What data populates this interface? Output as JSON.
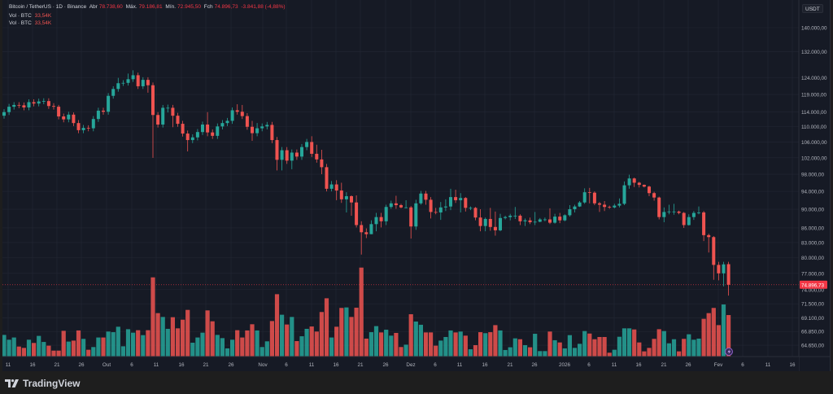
{
  "legend": {
    "symbol": "Bitcoin / TetherUS · 1D · Binance",
    "open_label": "Abr",
    "open": "78.738,60",
    "high_label": "Máx.",
    "high": "79.186,81",
    "low_label": "Mín.",
    "low": "72.945,50",
    "close_label": "Fch",
    "close": "74.896,73",
    "change": "-3.841,88 (-4,88%)",
    "volume_rows": [
      {
        "label": "Vol · BTC",
        "value": "33,54K"
      },
      {
        "label": "Vol · BTC",
        "value": "33,54K"
      }
    ]
  },
  "currency_button": "USDT",
  "current_price_label": "74.896,73",
  "footer": {
    "brand": "TradingView"
  },
  "colors": {
    "up": "#26a69a",
    "down": "#ef5350",
    "background": "#161a25",
    "grid": "#232734",
    "price_tag": "#f23645"
  },
  "chart_data": {
    "type": "candlestick",
    "title": "Bitcoin / TetherUS · 1D · Binance",
    "y_scale": "log",
    "y_ticks": [
      "140.000,00",
      "132.000,00",
      "124.000,00",
      "119.000,00",
      "114.000,00",
      "110.000,00",
      "106.000,00",
      "102.000,00",
      "98.000,00",
      "94.000,00",
      "90.000,00",
      "86.000,00",
      "83.000,00",
      "80.000,00",
      "77.000,00",
      "74.000,00",
      "71.500,00",
      "69.100,00",
      "66.850,00",
      "64.650,00"
    ],
    "y_tick_values": [
      140000,
      132000,
      124000,
      119000,
      114000,
      110000,
      106000,
      102000,
      98000,
      94000,
      90000,
      86000,
      83000,
      80000,
      77000,
      74000,
      71500,
      69100,
      66850,
      64650
    ],
    "x_ticks": [
      "11",
      "16",
      "21",
      "26",
      "Out",
      "6",
      "11",
      "16",
      "21",
      "26",
      "Nov",
      "6",
      "11",
      "16",
      "21",
      "26",
      "Dez",
      "6",
      "11",
      "16",
      "21",
      "26",
      "2026",
      "6",
      "11",
      "16",
      "21",
      "26",
      "Fev",
      "6",
      "11",
      "16"
    ],
    "grid": true,
    "ohlc_columns": [
      "open",
      "high",
      "low",
      "close"
    ],
    "candles": [
      [
        113000,
        114800,
        112200,
        114000
      ],
      [
        114000,
        116300,
        113200,
        115500
      ],
      [
        115500,
        116800,
        114700,
        116000
      ],
      [
        116000,
        116800,
        115100,
        115900
      ],
      [
        115900,
        116700,
        114500,
        115300
      ],
      [
        115300,
        117600,
        114500,
        116800
      ],
      [
        116800,
        117600,
        115600,
        116400
      ],
      [
        116400,
        117800,
        115600,
        117000
      ],
      [
        117000,
        117900,
        116200,
        117100
      ],
      [
        117100,
        117900,
        114900,
        115700
      ],
      [
        115700,
        116500,
        114700,
        115500
      ],
      [
        115500,
        116000,
        112000,
        112800
      ],
      [
        112800,
        113600,
        111200,
        112000
      ],
      [
        112000,
        114100,
        111200,
        113300
      ],
      [
        113300,
        113900,
        110200,
        111000
      ],
      [
        111000,
        111800,
        108300,
        109100
      ],
      [
        109100,
        110500,
        108300,
        109700
      ],
      [
        109700,
        110400,
        108800,
        109600
      ],
      [
        109600,
        112900,
        108800,
        112100
      ],
      [
        112100,
        115200,
        111300,
        114400
      ],
      [
        114400,
        115200,
        113300,
        114100
      ],
      [
        114100,
        119400,
        113300,
        118600
      ],
      [
        118600,
        121400,
        117800,
        120600
      ],
      [
        120600,
        123900,
        119800,
        122300
      ],
      [
        122300,
        123200,
        121500,
        122400
      ],
      [
        122400,
        125200,
        121600,
        123500
      ],
      [
        123500,
        126200,
        122700,
        124700
      ],
      [
        124700,
        125500,
        120600,
        121400
      ],
      [
        121400,
        124100,
        120600,
        123300
      ],
      [
        123300,
        124100,
        119500,
        121700
      ],
      [
        121700,
        122500,
        102000,
        113200
      ],
      [
        113200,
        114000,
        109800,
        110600
      ],
      [
        110600,
        116000,
        109800,
        115200
      ],
      [
        115200,
        116100,
        113900,
        115200
      ],
      [
        115200,
        116000,
        109900,
        113000
      ],
      [
        113000,
        113800,
        110000,
        110800
      ],
      [
        110800,
        111600,
        107400,
        108200
      ],
      [
        108200,
        109000,
        103600,
        106500
      ],
      [
        106500,
        108000,
        105700,
        107200
      ],
      [
        107200,
        109400,
        106400,
        108600
      ],
      [
        108600,
        111400,
        107800,
        110600
      ],
      [
        110600,
        114000,
        107500,
        108500
      ],
      [
        108500,
        109300,
        106800,
        107600
      ],
      [
        107600,
        110900,
        106800,
        110100
      ],
      [
        110100,
        111800,
        109300,
        111000
      ],
      [
        111000,
        112400,
        110200,
        111600
      ],
      [
        111600,
        115300,
        110800,
        114500
      ],
      [
        114500,
        116200,
        113300,
        114100
      ],
      [
        114100,
        116000,
        112100,
        112900
      ],
      [
        112900,
        113700,
        109200,
        110000
      ],
      [
        110000,
        111600,
        106300,
        108300
      ],
      [
        108300,
        111000,
        107500,
        109600
      ],
      [
        109600,
        110900,
        108800,
        110100
      ],
      [
        110100,
        111300,
        109300,
        110500
      ],
      [
        110500,
        111300,
        105700,
        106500
      ],
      [
        106500,
        107300,
        98900,
        101500
      ],
      [
        101500,
        104700,
        98900,
        103900
      ],
      [
        103900,
        104700,
        100500,
        101300
      ],
      [
        101300,
        104100,
        99200,
        103300
      ],
      [
        103300,
        104100,
        101500,
        102300
      ],
      [
        102300,
        105500,
        101500,
        104700
      ],
      [
        104700,
        106800,
        103900,
        106000
      ],
      [
        106000,
        107500,
        102200,
        103000
      ],
      [
        103000,
        105300,
        100800,
        101600
      ],
      [
        101600,
        104000,
        98000,
        99700
      ],
      [
        99700,
        100500,
        94000,
        94600
      ],
      [
        94600,
        96400,
        94000,
        95600
      ],
      [
        95600,
        96600,
        92000,
        94200
      ],
      [
        94200,
        96000,
        91400,
        92200
      ],
      [
        92200,
        93800,
        89300,
        92900
      ],
      [
        92900,
        93100,
        88600,
        91500
      ],
      [
        91500,
        93100,
        86100,
        86600
      ],
      [
        86600,
        87400,
        80600,
        85100
      ],
      [
        85100,
        85900,
        83900,
        84700
      ],
      [
        84700,
        87600,
        84700,
        86800
      ],
      [
        86800,
        89200,
        85300,
        88300
      ],
      [
        88300,
        89200,
        86100,
        87400
      ],
      [
        87400,
        91000,
        86600,
        90500
      ],
      [
        90500,
        91900,
        90100,
        91300
      ],
      [
        91300,
        93000,
        90100,
        90900
      ],
      [
        90900,
        91200,
        90200,
        90400
      ],
      [
        90400,
        92000,
        90200,
        90400
      ],
      [
        90400,
        90700,
        83800,
        86300
      ],
      [
        86300,
        92100,
        85600,
        91300
      ],
      [
        91300,
        94100,
        91000,
        93500
      ],
      [
        93500,
        94100,
        91000,
        92100
      ],
      [
        92100,
        92700,
        88000,
        89400
      ],
      [
        89400,
        90300,
        88900,
        89300
      ],
      [
        89300,
        91600,
        87700,
        90400
      ],
      [
        90400,
        92200,
        89600,
        90600
      ],
      [
        90600,
        94600,
        89800,
        92700
      ],
      [
        92700,
        94400,
        91400,
        92000
      ],
      [
        92000,
        93600,
        89300,
        92500
      ],
      [
        92500,
        92700,
        89500,
        90300
      ],
      [
        90300,
        90600,
        89800,
        90300
      ],
      [
        90300,
        90500,
        87600,
        88200
      ],
      [
        88200,
        90000,
        85300,
        86400
      ],
      [
        86400,
        88200,
        85300,
        87900
      ],
      [
        87900,
        90300,
        85400,
        86200
      ],
      [
        86200,
        89500,
        84400,
        85500
      ],
      [
        85500,
        89000,
        85300,
        88100
      ],
      [
        88100,
        88600,
        87800,
        88300
      ],
      [
        88300,
        89000,
        87600,
        88600
      ],
      [
        88600,
        90500,
        87900,
        88600
      ],
      [
        88600,
        88900,
        86600,
        87400
      ],
      [
        87400,
        88000,
        86400,
        87600
      ],
      [
        87600,
        88200,
        86800,
        87200
      ],
      [
        87200,
        89400,
        86600,
        87300
      ],
      [
        87300,
        88100,
        87200,
        87800
      ],
      [
        87800,
        88200,
        87400,
        87800
      ],
      [
        87800,
        90200,
        86800,
        87100
      ],
      [
        87100,
        89000,
        86900,
        88400
      ],
      [
        88400,
        89200,
        87000,
        87600
      ],
      [
        87600,
        88900,
        87400,
        88700
      ],
      [
        88700,
        90900,
        88400,
        90000
      ],
      [
        90000,
        91000,
        89300,
        90600
      ],
      [
        90600,
        91800,
        90500,
        91500
      ],
      [
        91500,
        94700,
        91200,
        93800
      ],
      [
        93800,
        94800,
        91300,
        93700
      ],
      [
        93700,
        94000,
        90900,
        91300
      ],
      [
        91300,
        91600,
        89400,
        91000
      ],
      [
        91000,
        91800,
        89600,
        90500
      ],
      [
        90500,
        90800,
        90100,
        90400
      ],
      [
        90400,
        91200,
        90200,
        90800
      ],
      [
        90800,
        92400,
        90400,
        91200
      ],
      [
        91200,
        96300,
        90900,
        95400
      ],
      [
        95400,
        97900,
        94600,
        97000
      ],
      [
        97000,
        97200,
        95000,
        96000
      ],
      [
        96000,
        96200,
        94900,
        95500
      ],
      [
        95500,
        95600,
        94900,
        95100
      ],
      [
        95100,
        95300,
        92900,
        93600
      ],
      [
        93600,
        93900,
        91900,
        92600
      ],
      [
        92600,
        92800,
        87800,
        88300
      ],
      [
        88300,
        90400,
        87200,
        89400
      ],
      [
        89400,
        91000,
        88900,
        89500
      ],
      [
        89500,
        91200,
        88800,
        89500
      ],
      [
        89500,
        89700,
        88900,
        89200
      ],
      [
        89200,
        89400,
        86000,
        86600
      ],
      [
        86600,
        88900,
        86500,
        88300
      ],
      [
        88300,
        89600,
        87700,
        89200
      ],
      [
        89200,
        90600,
        88900,
        89300
      ],
      [
        89300,
        89600,
        83300,
        84500
      ],
      [
        84500,
        84800,
        81000,
        84100
      ],
      [
        84100,
        84300,
        75800,
        78600
      ],
      [
        78600,
        79200,
        75700,
        77000
      ],
      [
        77000,
        79200,
        74600,
        78700
      ],
      [
        78738.6,
        79186.81,
        72945.5,
        74896.73
      ]
    ],
    "volume_unit": "K BTC",
    "volumes": [
      17.5,
      13.6,
      15.4,
      8.1,
      7.0,
      13.6,
      11.0,
      16.7,
      11.8,
      8.8,
      4.8,
      4.8,
      20.8,
      12.1,
      12.9,
      21.1,
      14.3,
      5.5,
      7.7,
      15.4,
      15.4,
      20.2,
      19.7,
      24.1,
      8.3,
      22.1,
      19.3,
      21.3,
      17.3,
      21.3,
      64.0,
      35.1,
      32.0,
      22.4,
      31.8,
      22.8,
      29.8,
      37.7,
      11.2,
      15.4,
      19.3,
      37.3,
      28.5,
      17.5,
      14.9,
      6.6,
      13.6,
      21.3,
      15.4,
      21.1,
      26.1,
      21.1,
      7.7,
      12.3,
      28.7,
      50.4,
      33.8,
      25.9,
      32.0,
      12.5,
      16.4,
      22.4,
      24.3,
      20.2,
      36.0,
      47.1,
      15.4,
      24.1,
      39.3,
      39.7,
      32.0,
      39.5,
      71.9,
      14.5,
      19.7,
      24.6,
      19.5,
      21.7,
      16.9,
      19.1,
      7.7,
      9.6,
      34.2,
      28.3,
      25.7,
      19.5,
      19.5,
      8.8,
      12.9,
      15.8,
      21.1,
      19.5,
      20.2,
      16.9,
      5.9,
      9.2,
      19.7,
      18.9,
      19.7,
      25.4,
      21.1,
      5.3,
      7.5,
      14.7,
      14.0,
      9.2,
      7.5,
      18.4,
      4.4,
      4.4,
      20.2,
      13.2,
      11.4,
      6.6,
      17.3,
      7.0,
      10.3,
      20.6,
      18.6,
      14.0,
      15.8,
      15.8,
      3.1,
      5.5,
      16.0,
      22.8,
      22.8,
      21.9,
      11.4,
      4.2,
      7.0,
      14.3,
      22.1,
      20.6,
      10.7,
      14.0,
      4.2,
      14.3,
      18.0,
      13.6,
      14.5,
      30.5,
      35.1,
      39.3,
      25.4,
      42.1,
      33.54
    ],
    "last_price": 74896.73
  }
}
